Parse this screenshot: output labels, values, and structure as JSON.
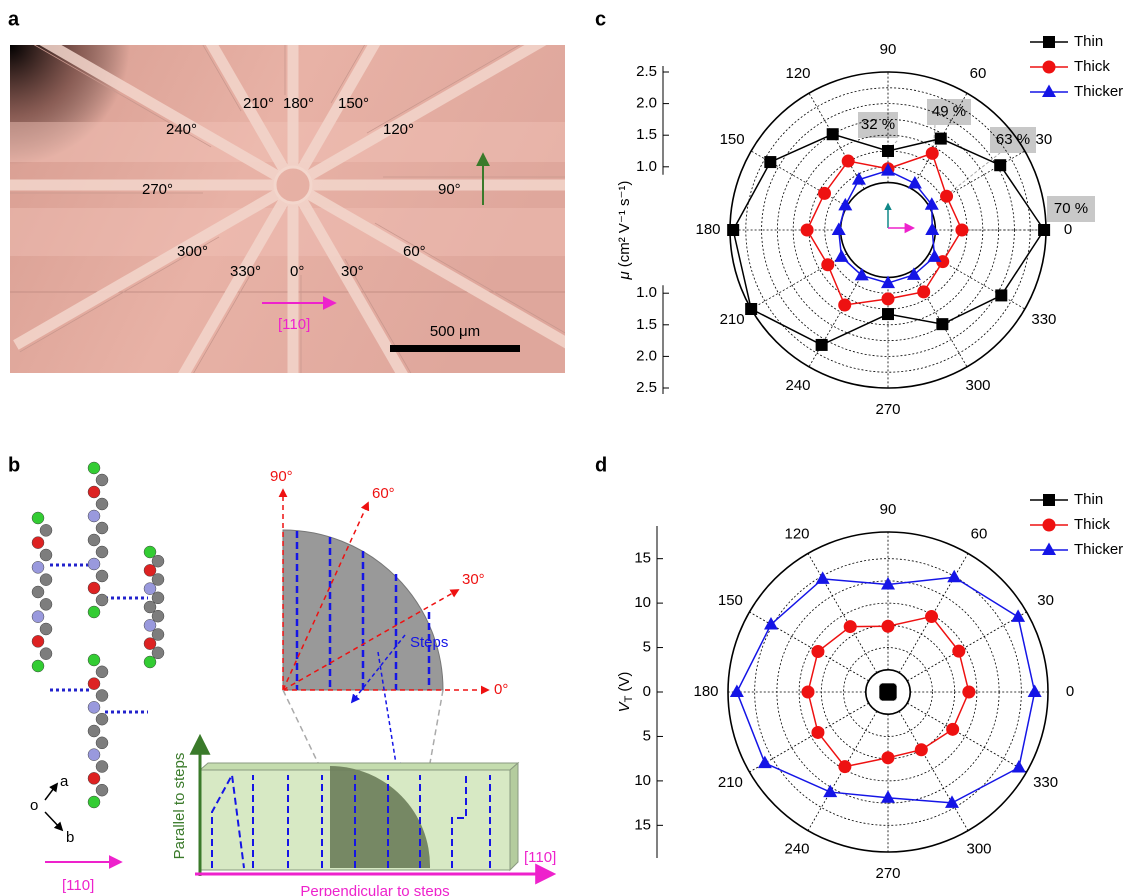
{
  "panel_labels": [
    "a",
    "b",
    "c",
    "d"
  ],
  "panel_a": {
    "angle_labels": [
      "210°",
      "180°",
      "150°",
      "240°",
      "120°",
      "270°",
      "90°",
      "300°",
      "60°",
      "330°",
      "0°",
      "30°"
    ],
    "direction": "[110]",
    "scale_bar": "500 μm"
  },
  "panel_b": {
    "angles": [
      "90°",
      "60°",
      "30°",
      "0°"
    ],
    "steps": "Steps",
    "parallel": "Parallel to steps",
    "perpendicular": "Perpendicular to steps",
    "direction_box": "[110]",
    "axes": [
      "a",
      "o",
      "b"
    ],
    "direction": "[110]"
  },
  "chart_data": [
    {
      "type": "polar",
      "ylabel": "μ",
      "ylabel_unit": "(cm² V⁻¹ s⁻¹)",
      "theta": [
        0,
        30,
        60,
        90,
        120,
        150,
        180,
        210,
        240,
        270,
        300,
        330
      ],
      "rlim": [
        0,
        2.5
      ],
      "rticks": [
        {
          "value": 1,
          "label": "1.0"
        },
        1.5,
        {
          "value": 2,
          "label": "2.0"
        },
        2.5
      ],
      "rgrid": [
        0.75,
        1,
        1.25,
        1.5,
        1.75,
        2,
        2.25
      ],
      "legend": "upper right",
      "series": [
        {
          "name": "Thin",
          "color": "#000000",
          "marker": "square",
          "values": [
            2.47,
            2.05,
            1.67,
            1.25,
            1.75,
            2.15,
            2.45,
            2.5,
            2.1,
            1.33,
            1.72,
            2.07
          ]
        },
        {
          "name": "Thick",
          "color": "#ee1111",
          "marker": "circle",
          "values": [
            1.17,
            1.07,
            1.4,
            0.97,
            1.26,
            1.16,
            1.28,
            1.1,
            1.37,
            1.09,
            1.13,
            1.0
          ]
        },
        {
          "name": "Thicker",
          "color": "#1515e6",
          "marker": "triangle",
          "values": [
            0.7,
            0.8,
            0.85,
            0.94,
            0.92,
            0.78,
            0.78,
            0.85,
            0.83,
            0.84,
            0.82,
            0.85
          ]
        }
      ],
      "annotations": [
        "32 %",
        "49 %",
        "63 %",
        "70 %"
      ]
    },
    {
      "type": "polar",
      "ylabel": "V",
      "ylabel_sub": "T",
      "ylabel_unit": "(V)",
      "theta": [
        0,
        30,
        60,
        90,
        120,
        150,
        180,
        210,
        240,
        270,
        300,
        330
      ],
      "rlim": [
        0,
        18
      ],
      "rticks": [
        0,
        5,
        10,
        15
      ],
      "rgrid": [
        2.5,
        5,
        7.5,
        10,
        12.5,
        15
      ],
      "legend": "upper right",
      "series": [
        {
          "name": "Thin",
          "color": "#000000",
          "marker": "square",
          "values": [
            0.3,
            0.3,
            0.3,
            0.3,
            0.3,
            0.3,
            0.3,
            0.3,
            0.3,
            0.3,
            0.3,
            0.3
          ]
        },
        {
          "name": "Thick",
          "color": "#ee1111",
          "marker": "circle",
          "values": [
            9.1,
            9.2,
            9.8,
            7.4,
            8.5,
            9.1,
            9.0,
            9.1,
            9.7,
            7.4,
            7.5,
            8.4
          ]
        },
        {
          "name": "Thicker",
          "color": "#1515e6",
          "marker": "triangle",
          "values": [
            16.5,
            16.9,
            14.9,
            12.1,
            14.7,
            15.2,
            17.0,
            16.0,
            13.0,
            11.9,
            14.4,
            17.0
          ]
        }
      ]
    }
  ]
}
